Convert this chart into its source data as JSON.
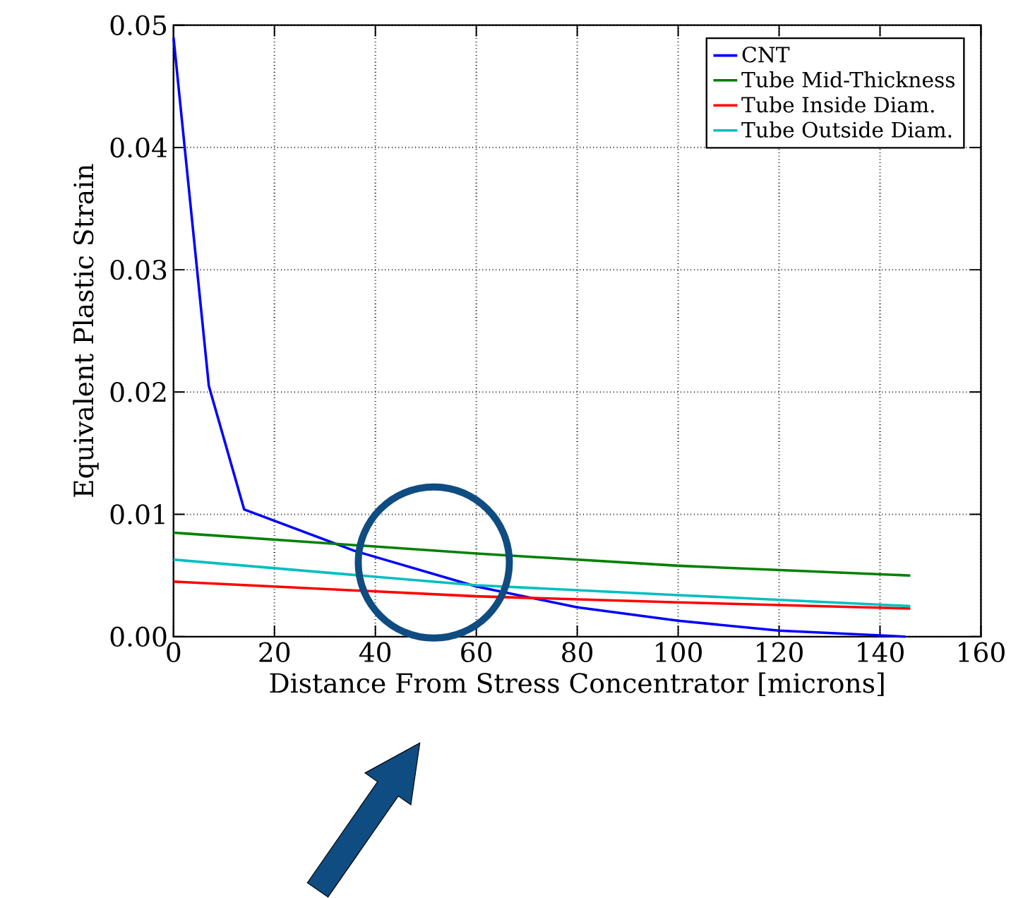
{
  "chart_data": {
    "type": "line",
    "xlabel": "Distance From Stress Concentrator [microns]",
    "ylabel": "Equivalent Plastic Strain",
    "xlim": [
      0,
      160
    ],
    "xticks": [
      0,
      20,
      40,
      60,
      80,
      100,
      120,
      140,
      160
    ],
    "ylim": [
      0,
      0.05
    ],
    "yticks": [
      {
        "value": 0,
        "label": "0.00"
      },
      {
        "value": 0.01,
        "label": "0.01"
      },
      {
        "value": 0.02,
        "label": "0.02"
      },
      {
        "value": 0.03,
        "label": "0.03"
      },
      {
        "value": 0.04,
        "label": "0.04"
      },
      {
        "value": 0.05,
        "label": "0.05"
      }
    ],
    "grid": true,
    "legend": "top right",
    "line_style": "solid",
    "marker": "none",
    "series": [
      {
        "name": "CNT",
        "color": "#0000ff",
        "x": [
          0,
          7,
          14,
          36,
          60,
          80,
          100,
          120,
          140,
          145
        ],
        "values": [
          0.049,
          0.0205,
          0.0104,
          0.007,
          0.0041,
          0.0024,
          0.0013,
          0.0005,
          0.0001,
          0
        ]
      },
      {
        "name": "Tube Mid-Thickness",
        "color": "#008000",
        "x": [
          0,
          60,
          100,
          146
        ],
        "values": [
          0.0085,
          0.0068,
          0.0058,
          0.005
        ]
      },
      {
        "name": "Tube Inside Diam.",
        "color": "#ff0000",
        "x": [
          0,
          60,
          100,
          146
        ],
        "values": [
          0.0045,
          0.0033,
          0.0028,
          0.0023
        ]
      },
      {
        "name": "Tube Outside Diam.",
        "color": "#00bfbf",
        "x": [
          0,
          60,
          100,
          146
        ],
        "values": [
          0.0063,
          0.0042,
          0.0034,
          0.0025
        ]
      }
    ]
  }
}
